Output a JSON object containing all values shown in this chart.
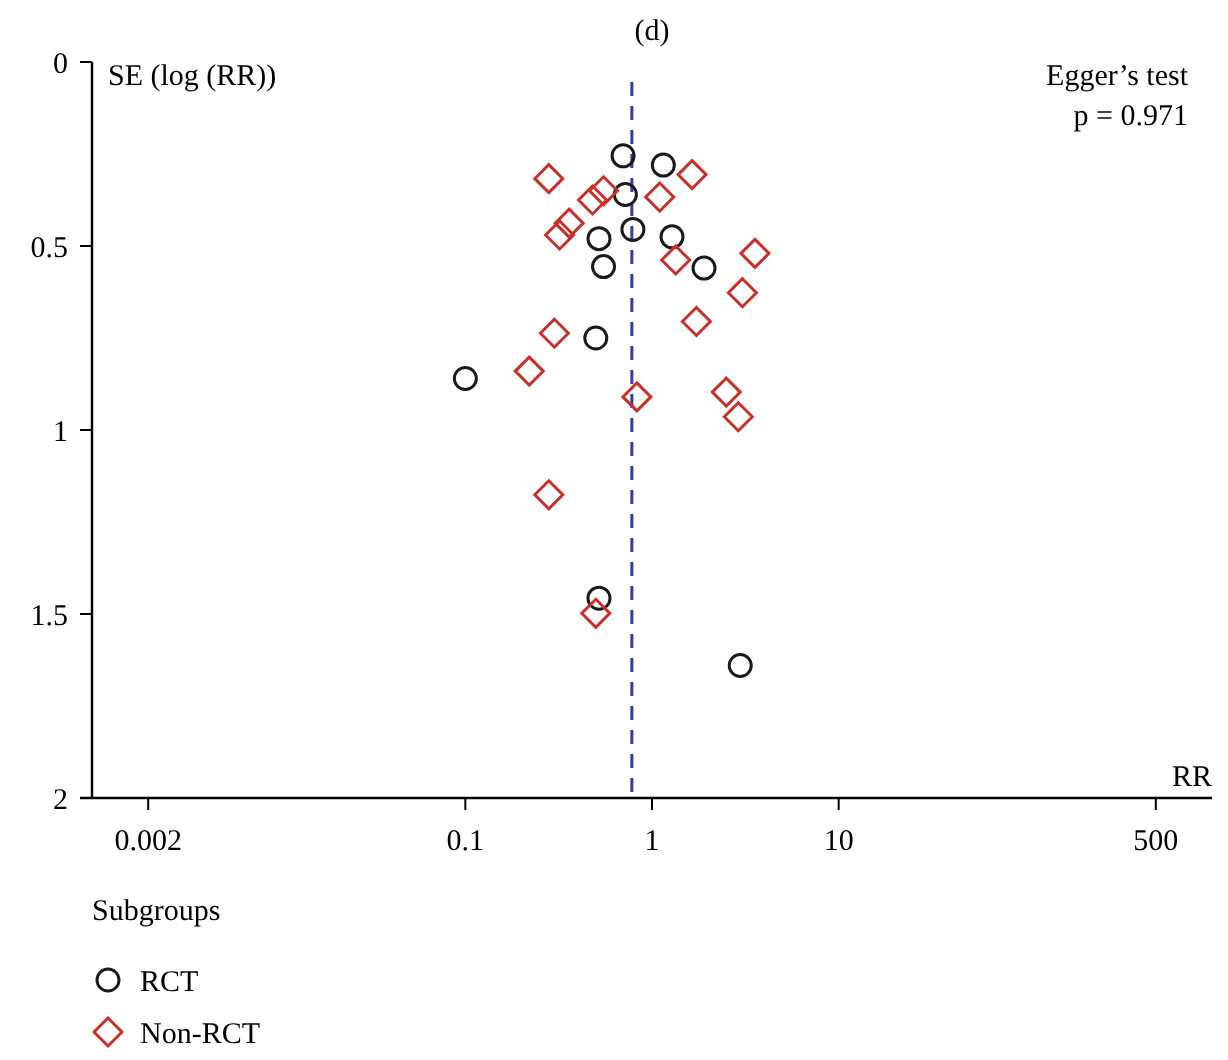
{
  "chart_data": {
    "type": "scatter",
    "title": "(d)",
    "ylabel": "SE (log (RR))",
    "xlabel": "RR",
    "legend_title": "Subgroups",
    "legend": "bottom",
    "log": "x",
    "xlim": [
      0.001,
      1000
    ],
    "xticks": [
      0.002,
      0.1,
      1,
      10,
      500
    ],
    "ylim": [
      2,
      0
    ],
    "yticks": [
      0,
      0.5,
      1,
      1.5,
      2
    ],
    "grid": false,
    "annotations": [
      "Egger’s test",
      "p = 0.971"
    ],
    "ref_lines": [
      {
        "axis": "x",
        "value": 0.78,
        "color": "#3b3b9e",
        "line_style": "dashed"
      }
    ],
    "series": [
      {
        "name": "RCT",
        "color": "#1a1a1a",
        "marker": "circle",
        "x": [
          0.7,
          1.15,
          0.72,
          0.79,
          0.52,
          1.28,
          0.55,
          1.9,
          0.5,
          0.1,
          0.52,
          2.97
        ],
        "values": [
          0.255,
          0.28,
          0.36,
          0.455,
          0.48,
          0.475,
          0.556,
          0.56,
          0.75,
          0.86,
          1.457,
          1.64
        ]
      },
      {
        "name": "Non-RCT",
        "color": "#c8312a",
        "marker": "diamond",
        "x": [
          0.28,
          1.64,
          0.55,
          0.48,
          1.1,
          0.36,
          0.32,
          1.34,
          3.56,
          3.05,
          1.73,
          0.3,
          0.22,
          0.83,
          2.5,
          2.9,
          0.28,
          0.5
        ],
        "values": [
          0.317,
          0.306,
          0.35,
          0.375,
          0.367,
          0.438,
          0.47,
          0.538,
          0.52,
          0.627,
          0.705,
          0.737,
          0.84,
          0.91,
          0.897,
          0.964,
          1.176,
          1.498
        ]
      }
    ]
  }
}
